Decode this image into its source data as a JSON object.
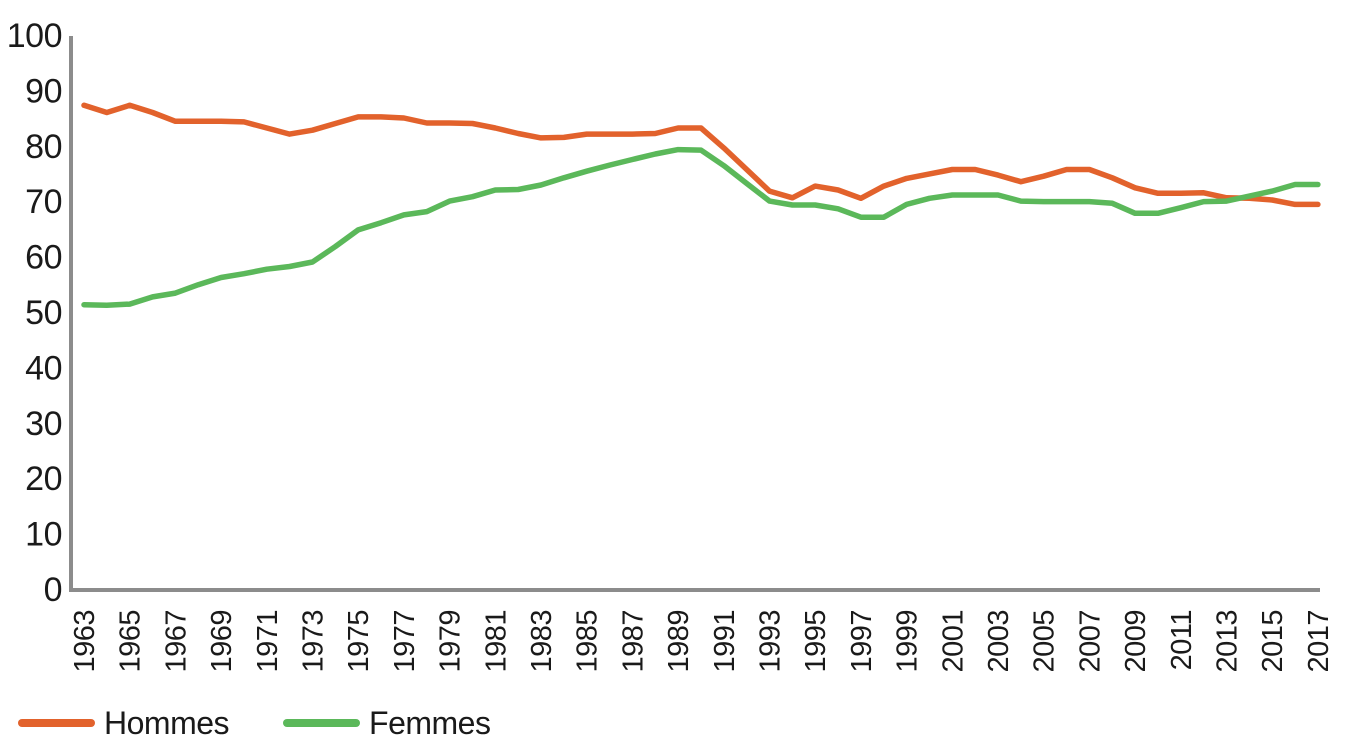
{
  "chart_data": {
    "type": "line",
    "title": "",
    "xlabel": "",
    "ylabel": "",
    "ylim": [
      0,
      100
    ],
    "grid": false,
    "legend_position": "bottom-left",
    "axis_color": "#8C8C8C",
    "text_color": "#1a1a1a",
    "x": [
      1963,
      1964,
      1965,
      1966,
      1967,
      1968,
      1969,
      1970,
      1971,
      1972,
      1973,
      1974,
      1975,
      1976,
      1977,
      1978,
      1979,
      1980,
      1981,
      1982,
      1983,
      1984,
      1985,
      1986,
      1987,
      1988,
      1989,
      1990,
      1991,
      1992,
      1993,
      1994,
      1995,
      1996,
      1997,
      1998,
      1999,
      2000,
      2001,
      2002,
      2003,
      2004,
      2005,
      2006,
      2007,
      2008,
      2009,
      2010,
      2011,
      2012,
      2013,
      2014,
      2015,
      2016,
      2017
    ],
    "x_tick_labels": [
      1963,
      1965,
      1967,
      1969,
      1971,
      1973,
      1975,
      1977,
      1979,
      1981,
      1983,
      1985,
      1987,
      1989,
      1991,
      1993,
      1995,
      1997,
      1999,
      2001,
      2003,
      2005,
      2007,
      2009,
      2011,
      2013,
      2015,
      2017
    ],
    "y_ticks": [
      0,
      10,
      20,
      30,
      40,
      50,
      60,
      70,
      80,
      90,
      100
    ],
    "series": [
      {
        "name": "Hommes",
        "color": "#E2622C",
        "values": [
          87.5,
          86.2,
          87.5,
          86.2,
          84.6,
          84.6,
          84.6,
          84.5,
          83.4,
          82.3,
          83.0,
          84.2,
          85.4,
          85.4,
          85.2,
          84.3,
          84.3,
          84.2,
          83.4,
          82.4,
          81.6,
          81.7,
          82.3,
          82.3,
          82.3,
          82.4,
          83.4,
          83.4,
          79.8,
          75.9,
          72.0,
          70.8,
          72.9,
          72.2,
          70.7,
          72.9,
          74.3,
          75.1,
          75.9,
          75.9,
          74.9,
          73.7,
          74.7,
          75.9,
          75.9,
          74.4,
          72.6,
          71.6,
          71.6,
          71.7,
          70.8,
          70.7,
          70.4,
          69.6,
          69.6
        ]
      },
      {
        "name": "Femmes",
        "color": "#5BB85A",
        "values": [
          51.5,
          51.4,
          51.6,
          52.9,
          53.6,
          55.1,
          56.4,
          57.1,
          57.9,
          58.4,
          59.2,
          62.0,
          65.0,
          66.3,
          67.7,
          68.3,
          70.2,
          71.0,
          72.2,
          72.3,
          73.1,
          74.4,
          75.6,
          76.7,
          77.7,
          78.7,
          79.5,
          79.4,
          76.6,
          73.4,
          70.2,
          69.5,
          69.5,
          68.8,
          67.3,
          67.3,
          69.6,
          70.7,
          71.3,
          71.3,
          71.3,
          70.2,
          70.1,
          70.1,
          70.1,
          69.8,
          68.0,
          68.0,
          69.0,
          70.1,
          70.2,
          71.1,
          72.0,
          73.2,
          73.2
        ]
      }
    ]
  }
}
